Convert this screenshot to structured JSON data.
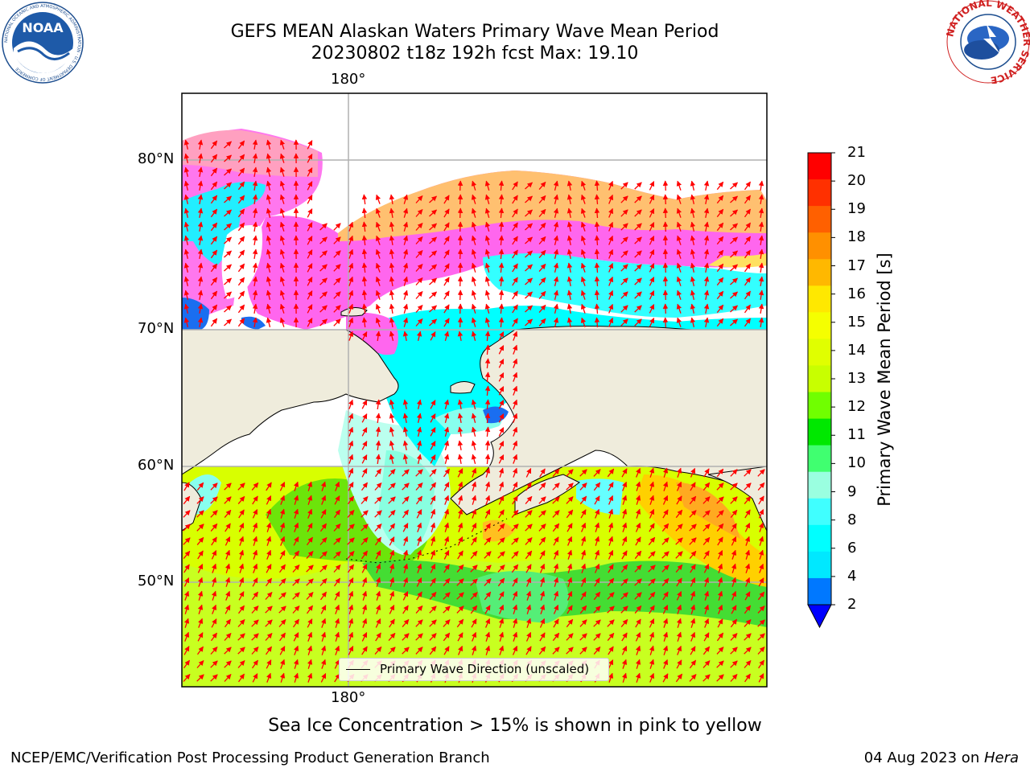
{
  "title": {
    "line1": "GEFS MEAN Alaskan Waters Primary Wave Mean Period",
    "line2": "20230802 t18z 192h fcst   Max: 19.10"
  },
  "map": {
    "projection": "cylindrical",
    "lon_center_label": "180°",
    "lat_labels": [
      "80°N",
      "70°N",
      "60°N",
      "50°N"
    ],
    "land_color": "#efecdc",
    "grid": true,
    "vector_color": "#ff0000"
  },
  "colorbar": {
    "label": "Primary Wave Mean Period [s]",
    "ticks": [
      "21",
      "20",
      "19",
      "18",
      "17",
      "16",
      "15",
      "14",
      "13",
      "12",
      "11",
      "10",
      "9",
      "8",
      "6",
      "4",
      "2"
    ],
    "colors": [
      "#ff0000",
      "#ff3000",
      "#ff6000",
      "#ff9000",
      "#ffb800",
      "#ffe800",
      "#f5ff00",
      "#e0ff00",
      "#c8ff00",
      "#70ff00",
      "#00e800",
      "#40ff70",
      "#9affe0",
      "#40ffff",
      "#00ffff",
      "#00e8ff",
      "#0078ff"
    ],
    "extend_color": "#0000ff"
  },
  "legend": {
    "text": "Primary Wave Direction (unscaled)"
  },
  "caption": "Sea Ice Concentration > 15% is shown in pink to yellow",
  "footer": {
    "left": "NCEP/EMC/Verification Post Processing Product Generation Branch",
    "date": "04 Aug 2023 on ",
    "host": "Hera"
  },
  "logos": {
    "noaa_text": "NOAA",
    "noaa_ring": "NATIONAL OCEANIC AND ATMOSPHERIC ADMINISTRATION · U.S. DEPARTMENT OF COMMERCE",
    "nws_ring": "NATIONAL WEATHER SERVICE"
  }
}
